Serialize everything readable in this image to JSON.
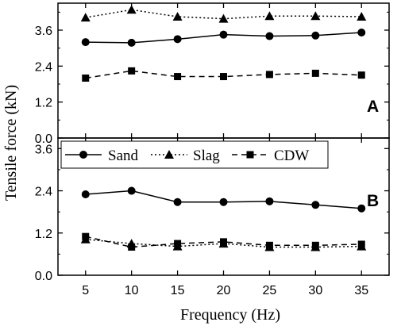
{
  "chart_data": [
    {
      "type": "line",
      "panel_label": "A",
      "ylabel": "Tensile force (kN)",
      "ylim": [
        0,
        4.5
      ],
      "y_ticks": [
        "0.0",
        "1.2",
        "2.4",
        "3.6"
      ],
      "x": [
        5,
        10,
        15,
        20,
        25,
        30,
        35
      ],
      "series": [
        {
          "name": "Sand",
          "marker": "circle",
          "line": "solid",
          "values": [
            3.2,
            3.18,
            3.3,
            3.45,
            3.4,
            3.42,
            3.52
          ]
        },
        {
          "name": "Slag",
          "marker": "triangle",
          "line": "dotted",
          "values": [
            4.02,
            4.28,
            4.05,
            3.98,
            4.07,
            4.07,
            4.05
          ]
        },
        {
          "name": "CDW",
          "marker": "square",
          "line": "dashed",
          "values": [
            2.0,
            2.24,
            2.05,
            2.05,
            2.12,
            2.16,
            2.1
          ]
        }
      ]
    },
    {
      "type": "line",
      "panel_label": "B",
      "ylim": [
        0,
        3.9
      ],
      "y_ticks": [
        "0.0",
        "1.2",
        "2.4",
        "3.6"
      ],
      "x": [
        5,
        10,
        15,
        20,
        25,
        30,
        35
      ],
      "xlabel": "Frequency (Hz)",
      "x_ticks": [
        "5",
        "10",
        "15",
        "20",
        "25",
        "30",
        "35"
      ],
      "legend_position": "top",
      "series": [
        {
          "name": "Sand",
          "marker": "circle",
          "line": "solid",
          "values": [
            2.3,
            2.4,
            2.08,
            2.08,
            2.1,
            2.0,
            1.9
          ]
        },
        {
          "name": "Slag",
          "marker": "triangle",
          "line": "dotted",
          "values": [
            1.02,
            0.9,
            0.82,
            0.9,
            0.8,
            0.8,
            0.82
          ]
        },
        {
          "name": "CDW",
          "marker": "square",
          "line": "dashed",
          "values": [
            1.1,
            0.8,
            0.9,
            0.95,
            0.85,
            0.85,
            0.88
          ]
        }
      ]
    }
  ]
}
